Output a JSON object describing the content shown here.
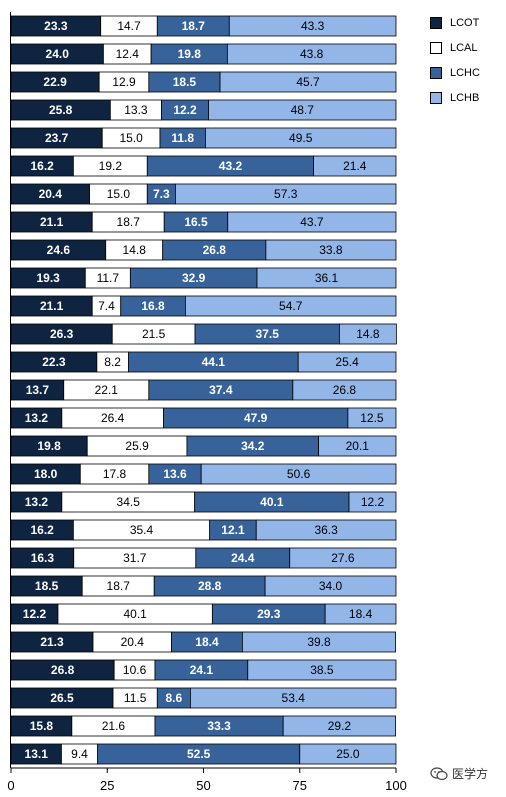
{
  "chart_data": {
    "type": "bar",
    "orientation": "horizontal",
    "stacked": true,
    "xlim": [
      0,
      100
    ],
    "xticks": [
      "0",
      "25",
      "50",
      "75",
      "100"
    ],
    "series": [
      {
        "name": "LCOT",
        "color": "#0e2440",
        "label_color": "#ffffff",
        "values": [
          23.3,
          24.0,
          22.9,
          25.8,
          23.7,
          16.2,
          20.4,
          21.1,
          24.6,
          19.3,
          21.1,
          26.3,
          22.3,
          13.7,
          13.2,
          19.8,
          18.0,
          13.2,
          16.2,
          16.3,
          18.5,
          12.2,
          21.3,
          26.8,
          26.5,
          15.8,
          13.1
        ]
      },
      {
        "name": "LCAL",
        "color": "#ffffff",
        "label_color": "#000000",
        "values": [
          14.7,
          12.4,
          12.9,
          13.3,
          15.0,
          19.2,
          15.0,
          18.7,
          14.8,
          11.7,
          7.4,
          21.5,
          8.2,
          22.1,
          26.4,
          25.9,
          17.8,
          34.5,
          35.4,
          31.7,
          18.7,
          40.1,
          20.4,
          10.6,
          11.5,
          21.6,
          9.4
        ]
      },
      {
        "name": "LCHC",
        "color": "#37639a",
        "label_color": "#ffffff",
        "values": [
          18.7,
          19.8,
          18.5,
          12.2,
          11.8,
          43.2,
          7.3,
          16.5,
          26.8,
          32.9,
          16.8,
          37.5,
          44.1,
          37.4,
          47.9,
          34.2,
          13.6,
          40.1,
          12.1,
          24.4,
          28.8,
          29.3,
          18.4,
          24.1,
          8.6,
          33.3,
          52.5
        ]
      },
      {
        "name": "LCHB",
        "color": "#93b6e9",
        "label_color": "#000000",
        "values": [
          43.3,
          43.8,
          45.7,
          48.7,
          49.5,
          21.4,
          57.3,
          43.7,
          33.8,
          36.1,
          54.7,
          14.8,
          25.4,
          26.8,
          12.5,
          20.1,
          50.6,
          12.2,
          36.3,
          27.6,
          34.0,
          18.4,
          39.8,
          38.5,
          53.4,
          29.2,
          25.0
        ]
      }
    ],
    "legend_position": "top-right",
    "grid": false
  },
  "watermark": {
    "text": "医学方"
  }
}
